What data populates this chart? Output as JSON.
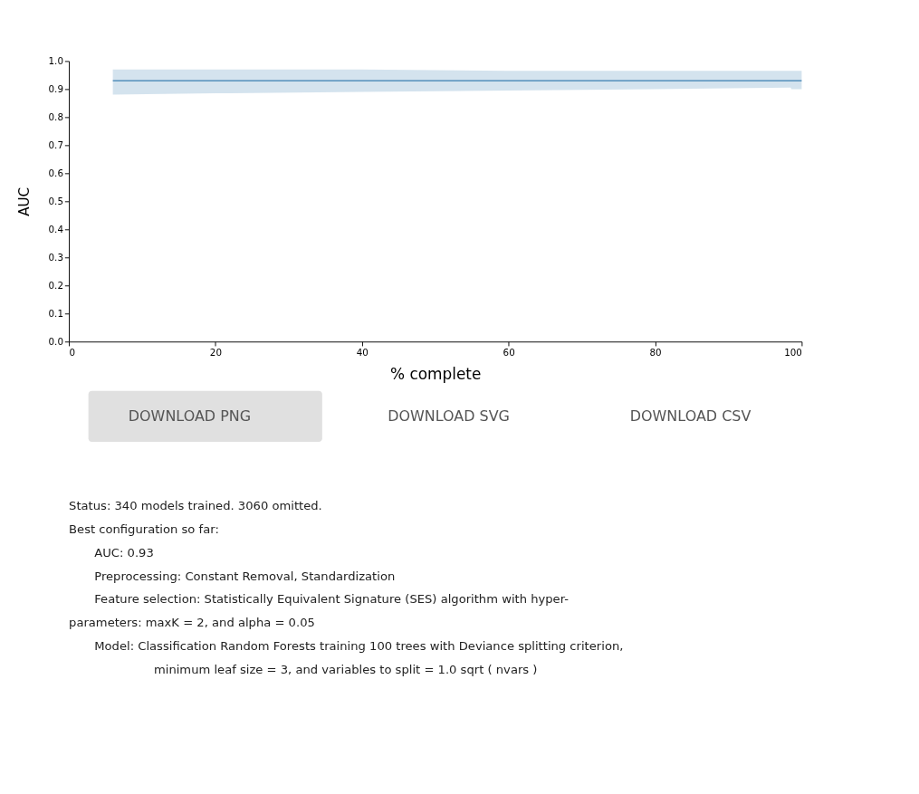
{
  "chart_data": {
    "type": "line",
    "xlabel": "% complete",
    "ylabel": "AUC",
    "series": [
      {
        "color": "#3a7fb0",
        "x": [
          6,
          20,
          40,
          60,
          80,
          98.5,
          98.6,
          100
        ],
        "values": [
          0.93,
          0.93,
          0.93,
          0.93,
          0.93,
          0.93,
          0.93,
          0.93
        ],
        "lower": [
          0.88,
          0.885,
          0.89,
          0.895,
          0.9,
          0.905,
          0.9,
          0.9
        ],
        "upper": [
          0.97,
          0.97,
          0.97,
          0.965,
          0.965,
          0.965,
          0.965,
          0.965
        ]
      }
    ],
    "xlim": [
      0,
      100
    ],
    "xticks": [
      0,
      20,
      40,
      60,
      80,
      100
    ],
    "ylim": [
      0,
      1
    ],
    "yticks": [
      {
        "value": 0,
        "label": "0.0"
      },
      {
        "value": 0.1,
        "label": "0.1"
      },
      {
        "value": 0.2,
        "label": "0.2"
      },
      {
        "value": 0.3,
        "label": "0.3"
      },
      {
        "value": 0.4,
        "label": "0.4"
      },
      {
        "value": 0.5,
        "label": "0.5"
      },
      {
        "value": 0.6,
        "label": "0.6"
      },
      {
        "value": 0.7,
        "label": "0.7"
      },
      {
        "value": 0.8,
        "label": "0.8"
      },
      {
        "value": 0.9,
        "label": "0.9"
      },
      {
        "value": 1,
        "label": "1.0"
      }
    ],
    "grid": false,
    "marker": "none",
    "line_style": "solid",
    "annotations": [
      "DOWNLOAD PNG",
      "DOWNLOAD SVG",
      "DOWNLOAD CSV",
      "Status: 340 models trained. 3060 omitted.",
      "Best configuration so far:",
      "AUC: 0.93",
      "Preprocessing: Constant Removal, Standardization",
      "Feature selection: Statistically Equivalent Signature (SES) algorithm with hyper-",
      "parameters: maxK = 2, and alpha = 0.05",
      "Model: Classification Random Forests training 100 trees with Deviance splitting criterion,",
      "minimum leaf size = 3, and variables to split = 1.0 sqrt ( nvars )"
    ]
  }
}
